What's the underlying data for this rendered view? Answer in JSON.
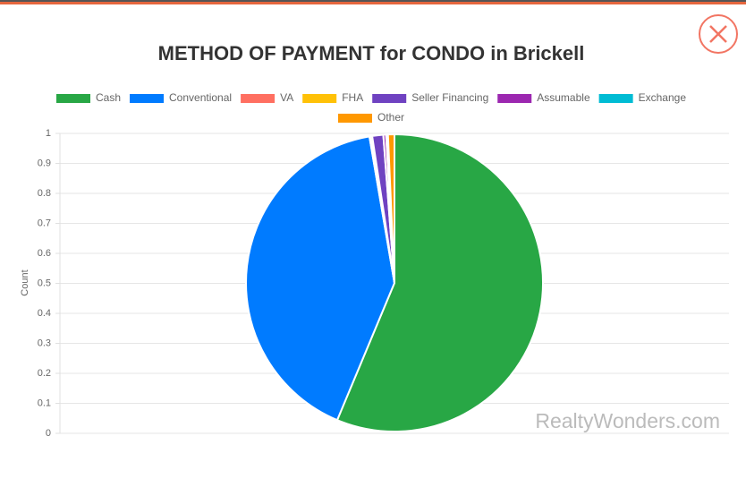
{
  "chart_data": {
    "type": "pie",
    "title": "METHOD OF PAYMENT for CONDO in Brickell",
    "categories": [
      "Cash",
      "Conventional",
      "VA",
      "FHA",
      "Seller Financing",
      "Assumable",
      "Exchange",
      "Other"
    ],
    "values": [
      56.3,
      41.0,
      0.1,
      0.2,
      1.2,
      0.3,
      0.2,
      0.7
    ],
    "colors": [
      "#28a745",
      "#007bff",
      "#ff6f61",
      "#ffc107",
      "#6f42c1",
      "#9c27b0",
      "#00bcd4",
      "#ff9800"
    ],
    "y_label": "Count",
    "ylim": [
      0,
      1
    ],
    "yticks": [
      0,
      0.1,
      0.2,
      0.3,
      0.4,
      0.5,
      0.6,
      0.7,
      0.8,
      0.9,
      1
    ],
    "grid": true,
    "watermark": "RealtyWonders.com"
  }
}
